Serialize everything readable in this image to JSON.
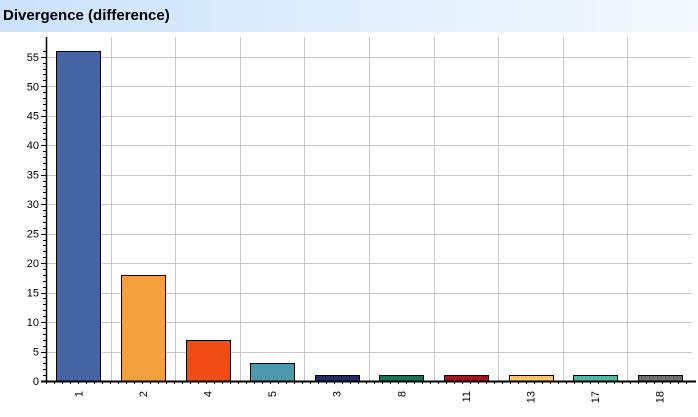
{
  "header": {
    "title": "Divergence (difference)"
  },
  "chart_data": {
    "type": "bar",
    "title": "Divergence (difference)",
    "xlabel": "",
    "ylabel": "",
    "categories": [
      "1",
      "2",
      "4",
      "5",
      "3",
      "8",
      "11",
      "13",
      "17",
      "18"
    ],
    "values": [
      56,
      18,
      7,
      3,
      1,
      1,
      1,
      1,
      1,
      1
    ],
    "colors": [
      "#4464a4",
      "#f4a03c",
      "#f04c14",
      "#4c98ac",
      "#242c6c",
      "#147454",
      "#a4141c",
      "#fcc46c",
      "#54b8a4",
      "#6c6c6c"
    ],
    "ylim": [
      0,
      57
    ],
    "yticks": [
      0,
      5,
      10,
      15,
      20,
      25,
      30,
      35,
      40,
      45,
      50,
      55
    ],
    "grid": true,
    "legend": "none"
  }
}
